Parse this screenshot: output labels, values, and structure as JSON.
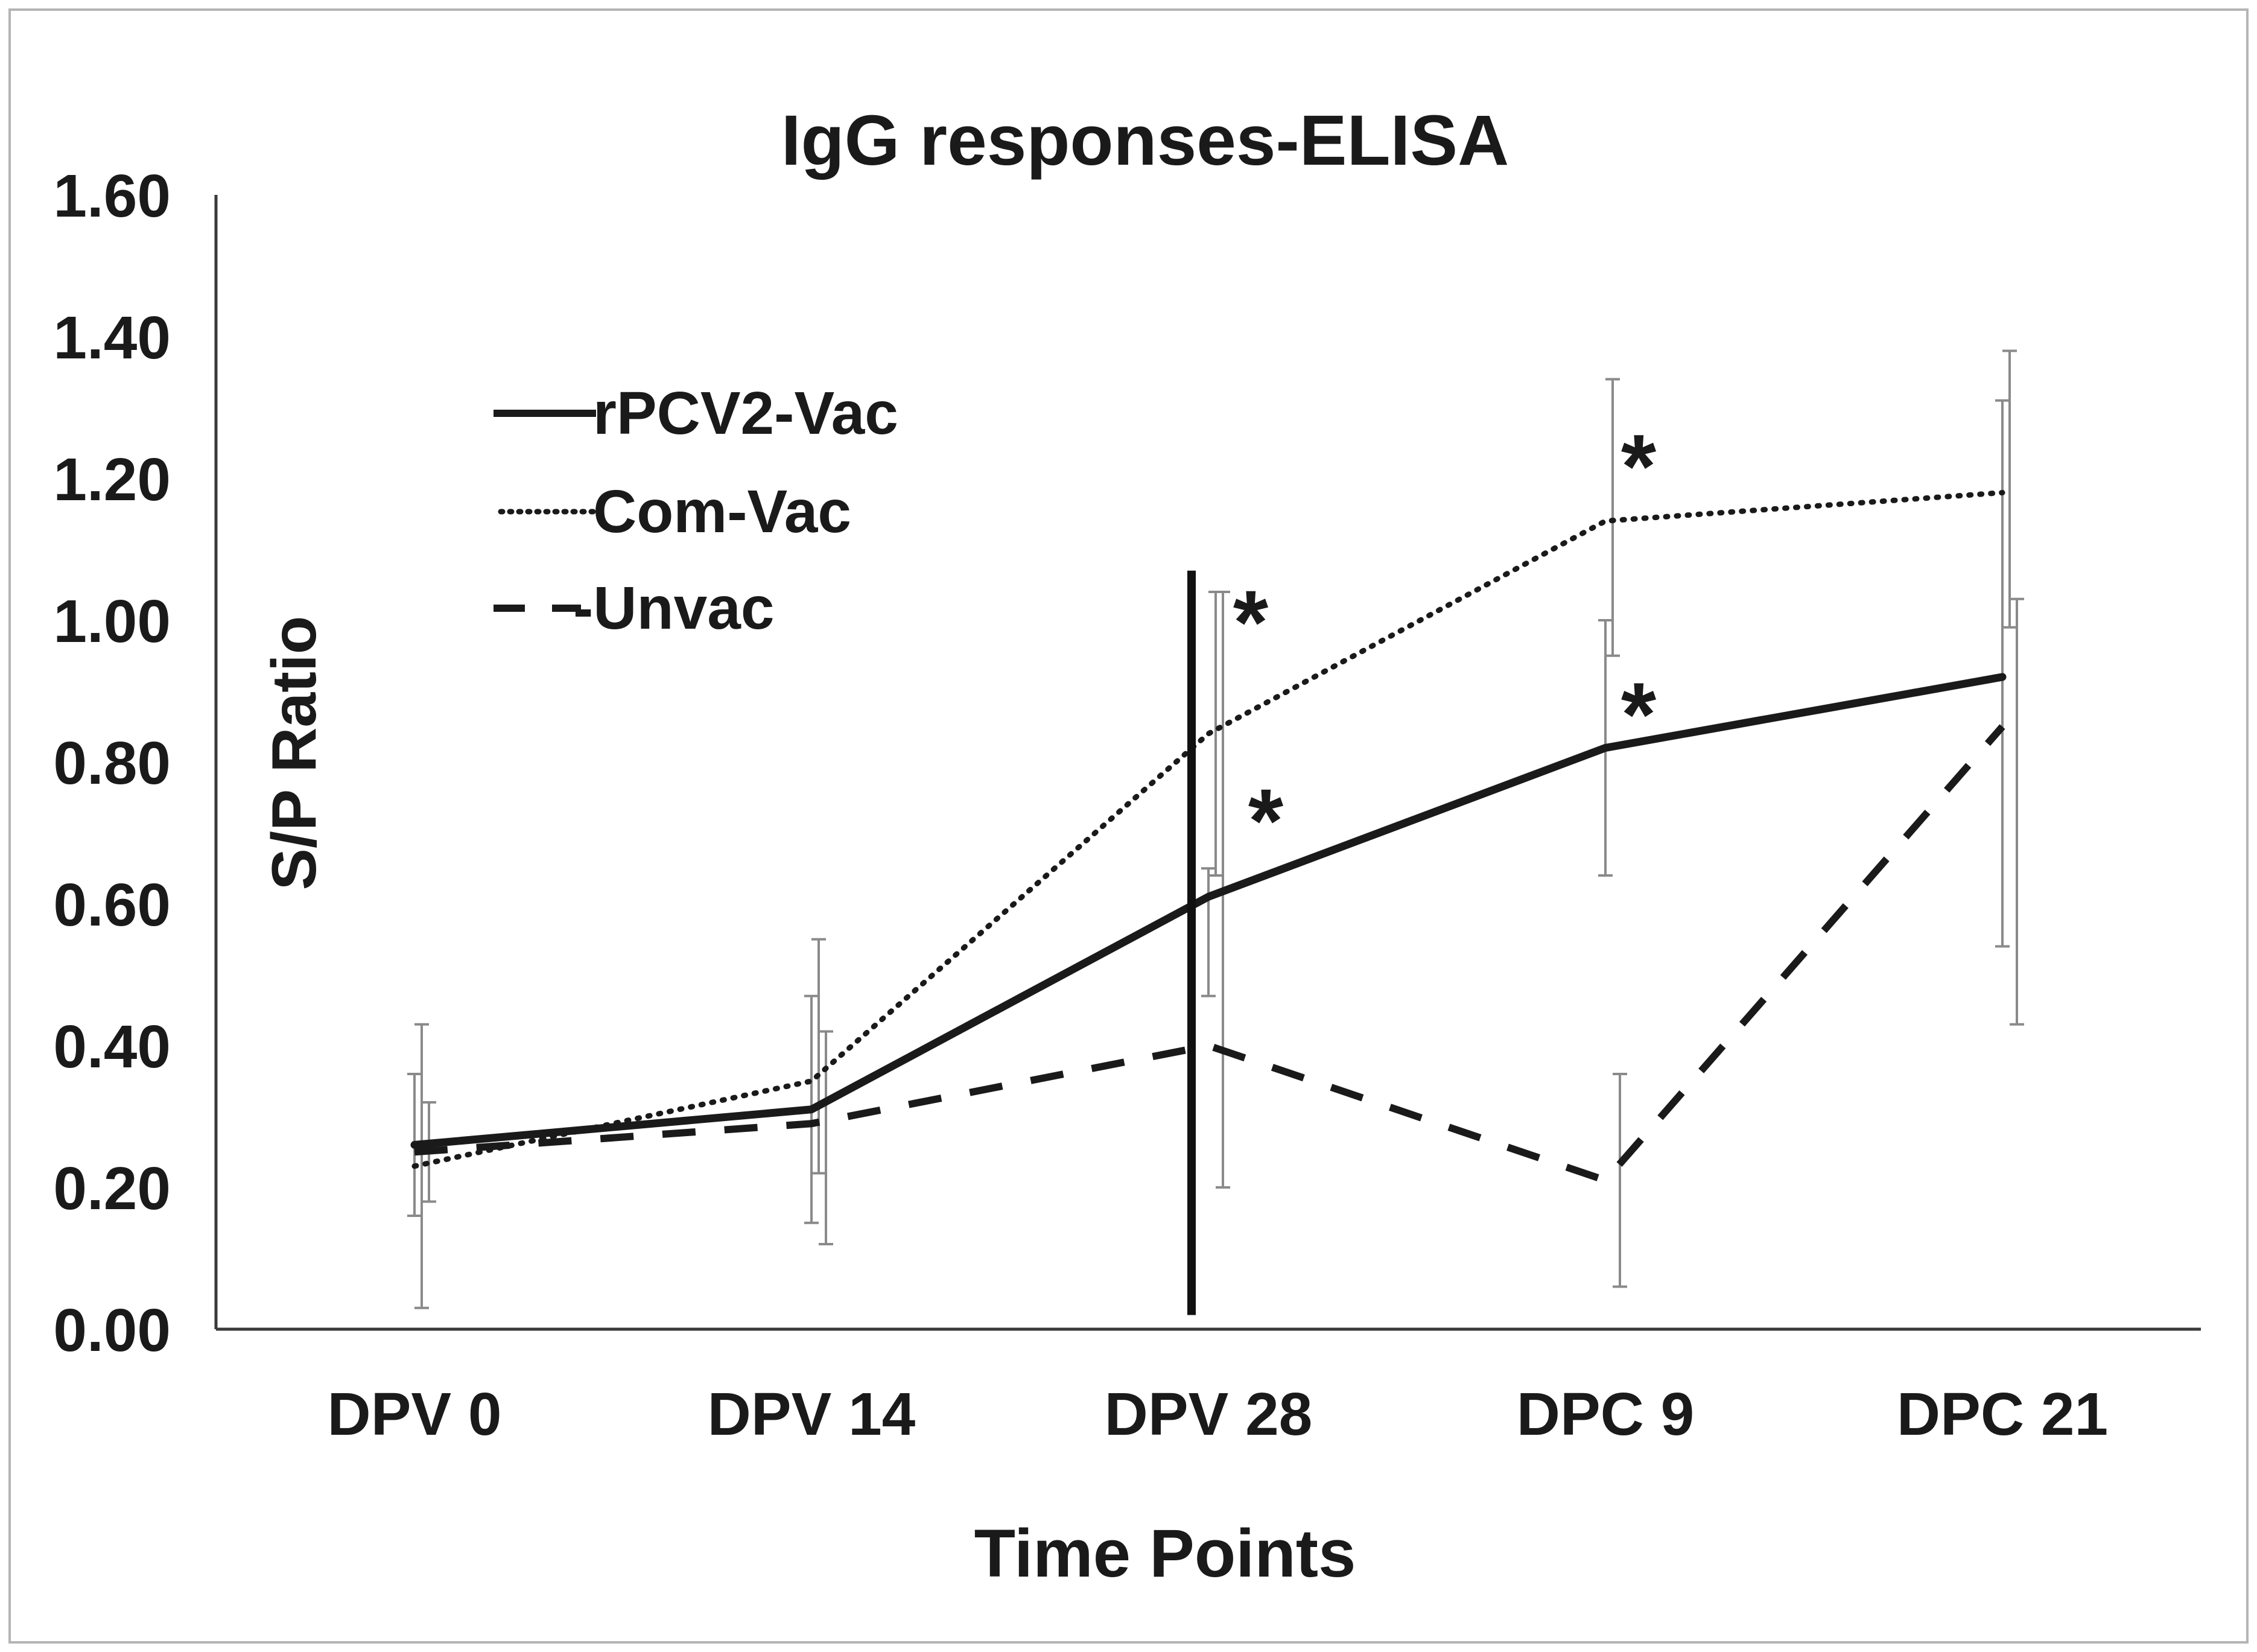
{
  "chart_data": {
    "type": "line",
    "title": "IgG responses-ELISA",
    "xlabel": "Time Points",
    "ylabel": "S/P Ratio",
    "categories": [
      "DPV 0",
      "DPV 14",
      "DPV 28",
      "DPC 9",
      "DPC 21"
    ],
    "ylim": [
      0,
      1.6
    ],
    "yticks": [
      "0.00",
      "0.20",
      "0.40",
      "0.60",
      "0.80",
      "1.00",
      "1.20",
      "1.40",
      "1.60"
    ],
    "grid": false,
    "legend_position": "top-left",
    "series": [
      {
        "name": "rPCV2-Vac",
        "style": "solid",
        "values": [
          0.26,
          0.31,
          0.61,
          0.82,
          0.92
        ],
        "error_low": [
          0.16,
          0.15,
          0.47,
          0.64,
          0.54
        ],
        "error_high": [
          0.36,
          0.47,
          0.65,
          1.0,
          1.31
        ]
      },
      {
        "name": "Com-Vac",
        "style": "dotted",
        "values": [
          0.23,
          0.35,
          0.84,
          1.14,
          1.18
        ],
        "error_low": [
          0.03,
          0.22,
          0.64,
          0.95,
          0.99
        ],
        "error_high": [
          0.43,
          0.55,
          1.04,
          1.34,
          1.38
        ]
      },
      {
        "name": "-Unvac",
        "style": "dashed",
        "values": [
          0.25,
          0.29,
          0.4,
          0.21,
          0.85
        ],
        "error_low": [
          0.18,
          0.12,
          0.2,
          0.06,
          0.43
        ],
        "error_high": [
          0.32,
          0.42,
          1.04,
          0.36,
          1.03
        ]
      }
    ],
    "divider_at": "DPV 28",
    "annotations": [
      {
        "text": "*",
        "category": "DPV 28",
        "y": 1.0
      },
      {
        "text": "*",
        "category": "DPV 28",
        "y": 0.72
      },
      {
        "text": "*",
        "category": "DPC 9",
        "y": 1.22
      },
      {
        "text": "*",
        "category": "DPC 9",
        "y": 0.87
      }
    ]
  }
}
